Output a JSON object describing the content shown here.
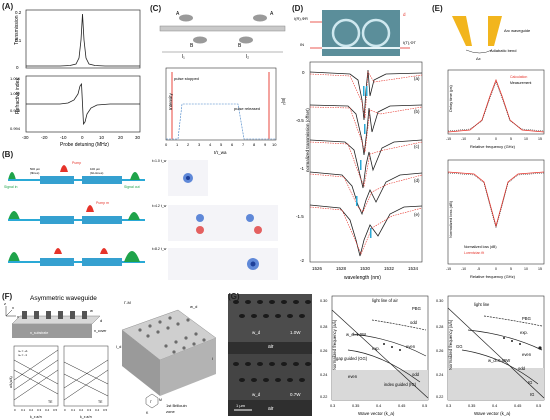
{
  "figure": {
    "panels": {
      "A": {
        "label": "(A)",
        "top_ylabel": "Transmission",
        "bottom_ylabel": "Refractive index",
        "xlabel": "Probe detuning (MHz)",
        "x_ticks": [
          "-30",
          "-20",
          "-10",
          "0",
          "10",
          "20",
          "30"
        ],
        "top_y_ticks": [
          "0",
          "0.1",
          "0.2"
        ],
        "bottom_y_ticks": [
          "0.994",
          "0.998",
          "1.002",
          "1.006"
        ]
      },
      "B": {
        "label": "(B)",
        "labels": {
          "signal_in": "Signal in",
          "signal_out": "Signal out",
          "pump": "Pump",
          "pump_m": "Pump m",
          "length1": "500 µm",
          "length2": "100 µm",
          "fiber": "(fibres)",
          "delay": "(bit-times)"
        }
      },
      "C": {
        "label": "(C)",
        "labels": {
          "A": "A",
          "B": "B",
          "l1": "l₁",
          "l2": "l₂",
          "ylabel": "Intensity",
          "xlabel": "t/τ_wa",
          "pulse_stopped": "pulse stopped",
          "pulse_released": "pulse released",
          "right_axis": "|E|²"
        },
        "x_ticks": [
          "0",
          "1",
          "2",
          "3",
          "4",
          "5",
          "6",
          "7",
          "8",
          "9",
          "10"
        ],
        "maps": [
          "t=1.0 t_w",
          "t=4.2 t_w",
          "t=8.2 t_w"
        ]
      },
      "D": {
        "label": "(D)",
        "inset_labels": {
          "ref": "I(R),ΦR",
          "in": "IN",
          "out": "I(T),ΦT",
          "d": "d"
        },
        "ylabel": "normalized transmission (offset)",
        "xlabel": "wavelength (nm)",
        "x_ticks": [
          "1526",
          "1528",
          "1530",
          "1532",
          "1534"
        ],
        "y_ticks": [
          "0",
          "-0.5",
          "-1",
          "-1.5",
          "-2"
        ],
        "curve_labels": [
          "(a)",
          "(b)",
          "(c)",
          "(d)",
          "(e)"
        ]
      },
      "E": {
        "label": "(E)",
        "inset_labels": {
          "arc": "Arc waveguide",
          "bend": "Adiabatic bend",
          "dx": "Δx"
        },
        "upper": {
          "ylabel": "Delay time (ps)",
          "xlabel": "Relative frequency (GHz)",
          "legend": [
            "Calculation",
            "Measurement"
          ],
          "x_ticks": [
            "-15",
            "-10",
            "-5",
            "0",
            "5",
            "10",
            "15"
          ]
        },
        "lower": {
          "ylabel": "Normalized loss (dB)",
          "xlabel": "Relative frequency (GHz)",
          "legend": [
            "Normalized loss (dB)",
            "Lorentzian fit"
          ],
          "x_ticks": [
            "-15",
            "-10",
            "-5",
            "0",
            "5",
            "10",
            "15"
          ]
        }
      },
      "F": {
        "label": "(F)",
        "title": "Asymmetric waveguide",
        "labels": {
          "x": "x",
          "y": "y",
          "z": "z",
          "w": "w",
          "nb": "n_b",
          "ng": "n_g",
          "d": "d",
          "ncover": "n_cover",
          "nsub": "n_substrate",
          "wd": "w_d",
          "l": "l",
          "ld": "l_d",
          "gm": "Γ-M",
          "gamma": "Γ",
          "M": "M",
          "K": "K",
          "bz1": "1st Brillouin",
          "bz2": "zone",
          "plot_ylabel": "a/λ(a/λ)",
          "plot_xlabel": "k_x a/π",
          "mode": "TE",
          "legend1": "nₑ = +1",
          "legend2": "nₑ = -1"
        },
        "x_ticks": [
          "0",
          "0.1",
          "0.2",
          "0.3",
          "0.4",
          "0.5"
        ]
      },
      "G": {
        "label": "(G)",
        "sem_labels": {
          "wd_top": "w_d",
          "w_top": "1.0W",
          "air": "air",
          "wd_bot": "w_d",
          "w_bot": "0.7W",
          "air_bot": "air",
          "scale": "1 µm"
        },
        "left_plot": {
          "ylabel": "Normalized frequency (a/λ)",
          "xlabel": "Wave vector (k_a)",
          "labels": [
            "light line of air",
            "PBG",
            "odd",
            "w_d=1.0W",
            "exp.",
            "even",
            "gap guided (GG)",
            "index guided (IG)",
            "even",
            "odd"
          ],
          "x_ticks": [
            "0.3",
            "0.35",
            "0.4",
            "0.45",
            "0.5"
          ],
          "y_ticks": [
            "0.22",
            "0.24",
            "0.26",
            "0.28",
            "0.30"
          ]
        },
        "right_plot": {
          "ylabel": "Normalized frequency (a/λ)",
          "xlabel": "Wave vector (k_a)",
          "labels": [
            "light line",
            "PBG",
            "exp.",
            "GG",
            "w_d=0.65W",
            "even",
            "odd",
            "IG",
            "IG"
          ],
          "x_ticks": [
            "0.3",
            "0.35",
            "0.4",
            "0.45",
            "0.5"
          ],
          "y_ticks": [
            "0.22",
            "0.24",
            "0.26",
            "0.28",
            "0.30"
          ]
        }
      }
    }
  }
}
